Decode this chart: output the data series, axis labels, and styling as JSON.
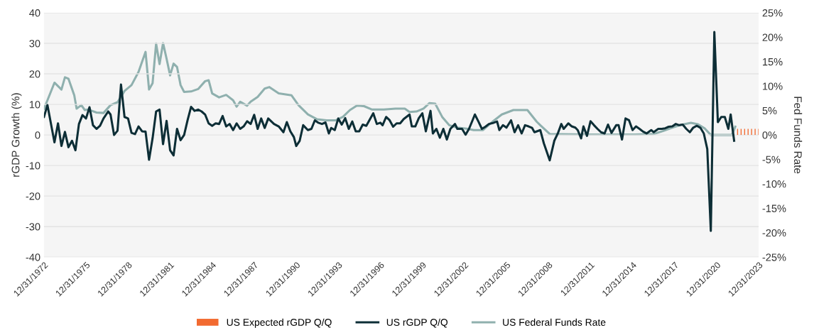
{
  "chart_data": {
    "type": "line",
    "ylabel": "rGDP Growth (%)",
    "y2label": "Fed Funds Rate",
    "xlim": [
      "1972-12-31",
      "2023-12-31"
    ],
    "xticks": [
      {
        "value": "1972-12-31",
        "label": "12/31/1972"
      },
      {
        "value": "1975-12-31",
        "label": "12/31/1975"
      },
      {
        "value": "1978-12-31",
        "label": "12/31/1978"
      },
      {
        "value": "1981-12-31",
        "label": "12/31/1981"
      },
      {
        "value": "1984-12-31",
        "label": "12/31/1984"
      },
      {
        "value": "1987-12-31",
        "label": "12/31/1987"
      },
      {
        "value": "1990-12-31",
        "label": "12/31/1990"
      },
      {
        "value": "1993-12-31",
        "label": "12/31/1993"
      },
      {
        "value": "1996-12-31",
        "label": "12/31/1996"
      },
      {
        "value": "1999-12-31",
        "label": "12/31/1999"
      },
      {
        "value": "2002-12-31",
        "label": "12/31/2002"
      },
      {
        "value": "2005-12-31",
        "label": "12/31/2005"
      },
      {
        "value": "2008-12-31",
        "label": "12/31/2008"
      },
      {
        "value": "2011-12-31",
        "label": "12/31/2011"
      },
      {
        "value": "2014-12-31",
        "label": "12/31/2014"
      },
      {
        "value": "2017-12-31",
        "label": "12/31/2017"
      },
      {
        "value": "2020-12-31",
        "label": "12/31/2020"
      },
      {
        "value": "2023-12-31",
        "label": "12/31/2023"
      }
    ],
    "ylim": [
      -40,
      40
    ],
    "yticks": [
      -40,
      -30,
      -20,
      -10,
      0,
      10,
      20,
      30,
      40
    ],
    "y2lim": [
      -25,
      25
    ],
    "y2ticks": [
      {
        "value": -25,
        "label": "-25%"
      },
      {
        "value": -20,
        "label": "-20%"
      },
      {
        "value": -15,
        "label": "-15%"
      },
      {
        "value": -10,
        "label": "-10%"
      },
      {
        "value": -5,
        "label": "-5%"
      },
      {
        "value": 0,
        "label": "0%"
      },
      {
        "value": 5,
        "label": "5%"
      },
      {
        "value": 10,
        "label": "10%"
      },
      {
        "value": 15,
        "label": "15%"
      },
      {
        "value": 20,
        "label": "20%"
      },
      {
        "value": 25,
        "label": "25%"
      }
    ],
    "grid": "y",
    "legend": "bottom",
    "series": [
      {
        "name": "US Expected rGDP Q/Q",
        "type": "bar",
        "color": "#f26a30",
        "x": [
          "2022-06-30",
          "2022-09-30",
          "2022-12-31",
          "2023-03-31",
          "2023-06-30",
          "2023-09-30",
          "2023-12-31"
        ],
        "values": [
          2,
          2,
          2,
          2,
          2,
          2,
          2
        ]
      },
      {
        "name": "US rGDP Q/Q",
        "color": "#0d2e36",
        "x": [
          "1973-01",
          "1973-04",
          "1973-10",
          "1974-01",
          "1974-04",
          "1974-07",
          "1974-10",
          "1975-01",
          "1975-04",
          "1975-07",
          "1975-10",
          "1976-01",
          "1976-04",
          "1976-07",
          "1976-10",
          "1977-01",
          "1977-04",
          "1977-08",
          "1977-10",
          "1978-01",
          "1978-04",
          "1978-07",
          "1978-10",
          "1979-01",
          "1979-04",
          "1979-07",
          "1979-10",
          "1980-01",
          "1980-04",
          "1980-07",
          "1980-10",
          "1981-01",
          "1981-04",
          "1981-07",
          "1981-10",
          "1982-01",
          "1982-04",
          "1982-07",
          "1982-10",
          "1983-01",
          "1983-04",
          "1983-07",
          "1983-10",
          "1984-01",
          "1984-04",
          "1984-07",
          "1984-10",
          "1985-01",
          "1985-04",
          "1985-07",
          "1985-10",
          "1986-01",
          "1986-04",
          "1986-07",
          "1986-10",
          "1987-01",
          "1987-04",
          "1987-07",
          "1987-10",
          "1988-01",
          "1988-04",
          "1988-07",
          "1988-10",
          "1989-01",
          "1989-06",
          "1989-10",
          "1990-02",
          "1990-05",
          "1990-08",
          "1990-11",
          "1991-01",
          "1991-04",
          "1991-07",
          "1991-11",
          "1992-02",
          "1992-05",
          "1992-08",
          "1992-11",
          "1993-02",
          "1993-05",
          "1993-07",
          "1993-10",
          "1994-01",
          "1994-04",
          "1994-07",
          "1994-10",
          "1995-01",
          "1995-04",
          "1995-07",
          "1995-10",
          "1996-01",
          "1996-07",
          "1996-10",
          "1997-01",
          "1997-03",
          "1997-06",
          "1997-09",
          "1997-12",
          "1998-03",
          "1998-06",
          "1998-09",
          "1999-02",
          "1999-04",
          "1999-07",
          "1999-10",
          "2000-01",
          "2000-04",
          "2000-08",
          "2000-10",
          "2001-01",
          "2001-04",
          "2001-07",
          "2001-10",
          "2002-01",
          "2002-05",
          "2002-07",
          "2002-11",
          "2003-02",
          "2003-05",
          "2003-08",
          "2003-10",
          "2004-01",
          "2004-04",
          "2004-07",
          "2004-10",
          "2005-02",
          "2005-05",
          "2005-07",
          "2005-10",
          "2006-01",
          "2006-05",
          "2006-08",
          "2006-11",
          "2007-02",
          "2007-05",
          "2007-08",
          "2007-11",
          "2008-01",
          "2008-06",
          "2008-09",
          "2009-02",
          "2009-06",
          "2009-09",
          "2009-12",
          "2010-02",
          "2010-06",
          "2010-09",
          "2010-12",
          "2011-02",
          "2011-05",
          "2011-07",
          "2011-10",
          "2012-01",
          "2012-04",
          "2012-07",
          "2012-10",
          "2013-01",
          "2013-04",
          "2013-07",
          "2013-11",
          "2014-01",
          "2014-04",
          "2014-07",
          "2014-10",
          "2015-01",
          "2015-04",
          "2015-07",
          "2015-10",
          "2016-01",
          "2016-05",
          "2016-07",
          "2016-11",
          "2017-02",
          "2017-05",
          "2017-08",
          "2017-11",
          "2018-02",
          "2018-05",
          "2018-08",
          "2018-11",
          "2019-02",
          "2019-05",
          "2019-08",
          "2019-11",
          "2020-02",
          "2020-05",
          "2020-08",
          "2020-11",
          "2021-02",
          "2021-05",
          "2021-08",
          "2021-11",
          "2022-01",
          "2022-04"
        ],
        "values": [
          5.9,
          9.8,
          -2.4,
          3.8,
          -3.6,
          1.0,
          -4.0,
          -1.9,
          -5.0,
          3.6,
          6.5,
          5.4,
          9.1,
          3.2,
          2.0,
          3.0,
          5.4,
          7.7,
          6.7,
          0.0,
          1.4,
          16.5,
          5.9,
          5.4,
          0.7,
          0.3,
          2.8,
          1.2,
          1.1,
          -8.1,
          -1.1,
          7.7,
          8.3,
          -3.0,
          4.6,
          -5.0,
          -6.7,
          2.0,
          -1.7,
          0.0,
          4.8,
          9.2,
          7.9,
          8.3,
          7.7,
          6.7,
          3.8,
          3.0,
          3.8,
          3.6,
          6.2,
          2.8,
          3.6,
          1.6,
          3.8,
          2.0,
          2.8,
          4.5,
          3.6,
          6.6,
          2.0,
          5.4,
          2.3,
          5.4,
          3.6,
          2.8,
          0.9,
          4.2,
          1.2,
          -0.7,
          -3.6,
          -1.9,
          3.2,
          1.6,
          2.0,
          4.8,
          4.0,
          3.6,
          4.1,
          0.5,
          2.3,
          1.6,
          5.4,
          3.4,
          5.5,
          2.0,
          4.4,
          1.2,
          1.2,
          3.4,
          3.0,
          7.1,
          3.6,
          4.0,
          3.2,
          5.9,
          4.8,
          2.7,
          3.8,
          3.8,
          5.2,
          6.7,
          2.8,
          2.8,
          5.5,
          7.1,
          1.2,
          7.9,
          0.5,
          2.0,
          -0.9,
          2.0,
          -1.5,
          2.0,
          3.6,
          2.0,
          2.0,
          0.1,
          2.0,
          4.8,
          6.7,
          4.4,
          2.0,
          2.7,
          3.6,
          4.0,
          4.4,
          1.6,
          3.2,
          2.4,
          4.8,
          0.9,
          3.2,
          0.5,
          3.2,
          2.8,
          2.3,
          0.9,
          1.6,
          -2.7,
          -8.3,
          -1.9,
          0.5,
          3.6,
          2.0,
          3.8,
          2.8,
          2.4,
          1.6,
          -1.1,
          2.8,
          -0.3,
          4.5,
          3.2,
          2.0,
          0.9,
          0.5,
          3.4,
          0.7,
          3.2,
          3.2,
          -1.5,
          5.4,
          4.8,
          1.6,
          2.8,
          2.0,
          1.1,
          0.5,
          1.6,
          0.9,
          2.0,
          2.0,
          2.2,
          2.7,
          2.8,
          3.6,
          3.2,
          3.4,
          2.0,
          0.9,
          2.4,
          3.0,
          2.4,
          0.5,
          -4.6,
          -31.4,
          33.7,
          4.2,
          5.9,
          5.9,
          2.0,
          6.7,
          -1.9
        ]
      },
      {
        "name": "US Federal Funds Rate",
        "axis": "y2",
        "color": "#8fb0ae",
        "x": [
          "1973-01",
          "1973-04",
          "1973-10",
          "1974-04",
          "1974-07",
          "1974-10",
          "1975-03",
          "1975-05",
          "1975-09",
          "1975-12",
          "1976-03",
          "1976-10",
          "1977-04",
          "1977-10",
          "1978-04",
          "1978-10",
          "1979-04",
          "1979-10",
          "1980-04",
          "1980-07",
          "1980-10",
          "1981-01",
          "1981-04",
          "1981-07",
          "1981-10",
          "1982-01",
          "1982-04",
          "1982-07",
          "1982-10",
          "1983-01",
          "1983-07",
          "1984-01",
          "1984-07",
          "1984-10",
          "1985-01",
          "1985-07",
          "1986-01",
          "1986-07",
          "1986-10",
          "1987-01",
          "1987-07",
          "1987-10",
          "1988-04",
          "1988-10",
          "1989-02",
          "1989-10",
          "1990-09",
          "1991-03",
          "1991-11",
          "1992-07",
          "1993-03",
          "1993-11",
          "1994-05",
          "1994-11",
          "1995-05",
          "1995-11",
          "1996-06",
          "1997-04",
          "1998-02",
          "1998-10",
          "1999-02",
          "1999-08",
          "2000-02",
          "2000-07",
          "2000-12",
          "2001-06",
          "2001-12",
          "2002-07",
          "2003-03",
          "2003-09",
          "2004-05",
          "2005-01",
          "2005-09",
          "2006-07",
          "2007-07",
          "2008-03",
          "2008-06",
          "2009-02",
          "2011-10",
          "2015-03",
          "2016-07",
          "2017-03",
          "2017-11",
          "2018-07",
          "2019-03",
          "2019-09",
          "2020-03",
          "2020-08",
          "2021-04",
          "2022-02",
          "2022-05"
        ],
        "values": [
          5.4,
          7.1,
          10.7,
          9.3,
          11.8,
          11.5,
          8.1,
          5.4,
          6.1,
          5.1,
          5.2,
          4.6,
          4.5,
          6.1,
          6.7,
          9.0,
          10.2,
          12.9,
          17.0,
          9.3,
          10.6,
          18.7,
          14.5,
          18.8,
          15.6,
          12.2,
          14.6,
          13.9,
          10.2,
          8.8,
          8.9,
          9.4,
          11.0,
          11.2,
          8.5,
          7.7,
          8.2,
          7.1,
          5.8,
          6.8,
          6.0,
          6.8,
          7.8,
          9.5,
          9.8,
          8.5,
          8.1,
          6.1,
          4.2,
          3.2,
          3.0,
          3.0,
          3.7,
          5.1,
          6.0,
          5.9,
          5.2,
          5.2,
          5.4,
          5.4,
          4.7,
          4.8,
          5.4,
          6.5,
          6.4,
          3.7,
          2.0,
          1.5,
          1.3,
          1.0,
          1.0,
          2.7,
          4.2,
          5.1,
          5.1,
          2.7,
          2.0,
          0.2,
          0.1,
          0.1,
          0.2,
          0.8,
          1.5,
          2.1,
          2.5,
          2.2,
          1.3,
          0.0,
          0.0,
          0.0,
          1.7
        ]
      }
    ]
  }
}
